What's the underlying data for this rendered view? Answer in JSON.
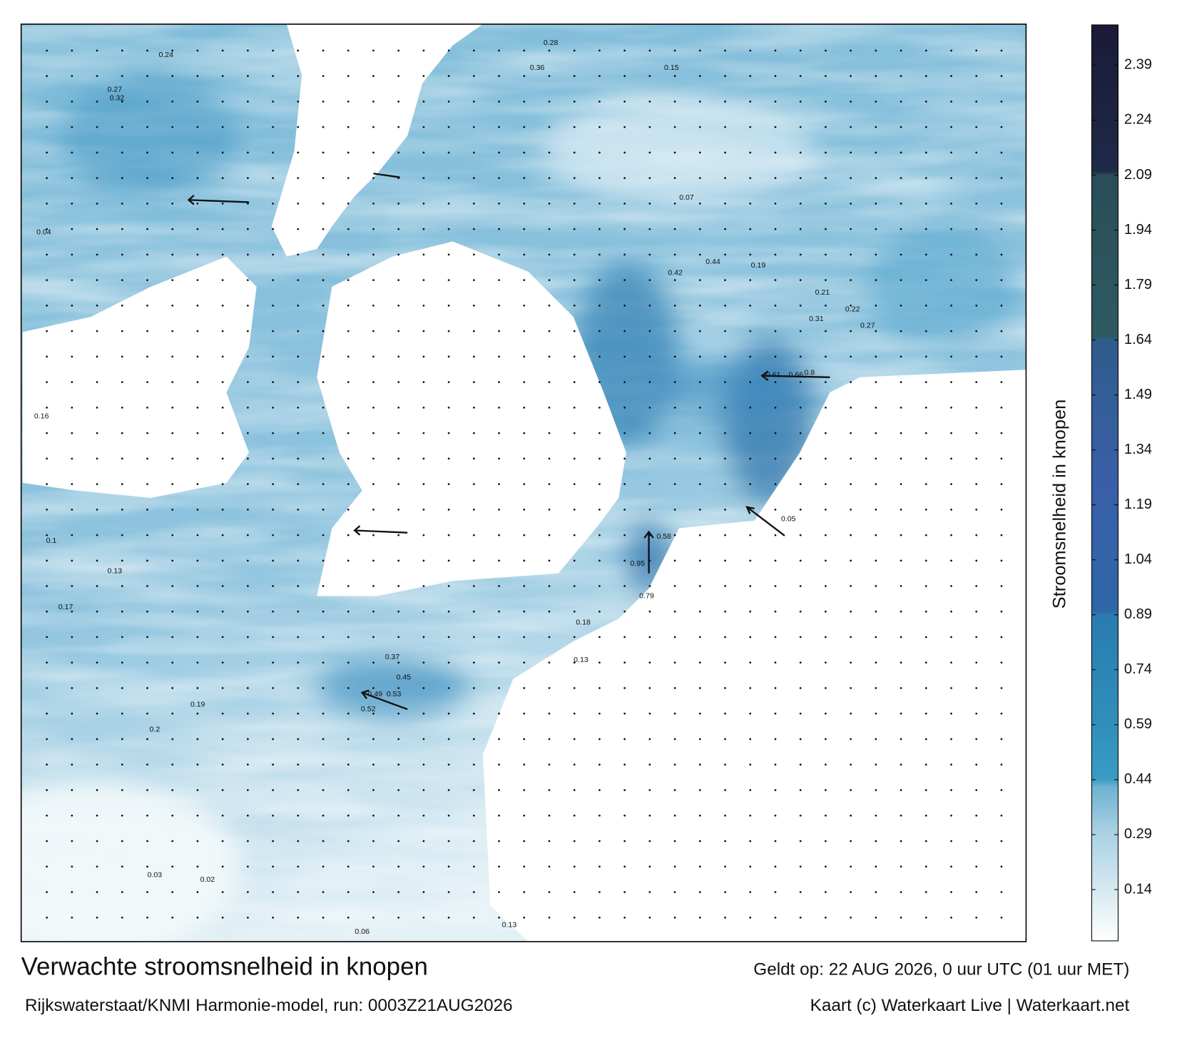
{
  "header": {
    "title": "Verwachte stroomsnelheid in knopen",
    "subtitle": "Rijkswaterstaat/KNMI Harmonie-model, run: 0003Z21AUG2026",
    "valid": "Geldt op: 22 AUG 2026, 0 uur UTC (01 uur MET)",
    "credit": "Kaart (c) Waterkaart Live | Waterkaart.net"
  },
  "colorbar": {
    "label": "Stroomsnelheid in knopen",
    "range": [
      0,
      2.5
    ],
    "ticks": [
      0.14,
      0.29,
      0.44,
      0.59,
      0.74,
      0.89,
      1.04,
      1.19,
      1.34,
      1.49,
      1.64,
      1.79,
      1.94,
      2.09,
      2.24,
      2.39
    ],
    "stops": [
      [
        0,
        "#ffffff"
      ],
      [
        0.3,
        "#a8d0e2"
      ],
      [
        0.42,
        "#6fb2d2"
      ],
      [
        0.44,
        "#3a9cc4"
      ],
      [
        0.6,
        "#2f8fba"
      ],
      [
        0.89,
        "#2a7bb0"
      ],
      [
        0.9,
        "#2e67a8"
      ],
      [
        1.25,
        "#3a5fa8"
      ],
      [
        1.64,
        "#2f5c8c"
      ],
      [
        1.65,
        "#2e5a62"
      ],
      [
        2.09,
        "#2a4d58"
      ],
      [
        2.1,
        "#1f2a48"
      ],
      [
        2.5,
        "#1a1a38"
      ]
    ]
  },
  "speed_labels": [
    0.28,
    0.36,
    0.15,
    0.44,
    0.42,
    0.61,
    0.66,
    0.8,
    0.95,
    0.79,
    0.58,
    0.53,
    0.49,
    0.52,
    0.45,
    0.37,
    0.2,
    0.19,
    0.13,
    0.17,
    0.1,
    0.04,
    0.16,
    0.32,
    0.27,
    0.24,
    0.07,
    0.19,
    0.31,
    0.21,
    0.22,
    0.27,
    0.18,
    0.13,
    0.03,
    0.02,
    0.06,
    0.13,
    0.05
  ]
}
